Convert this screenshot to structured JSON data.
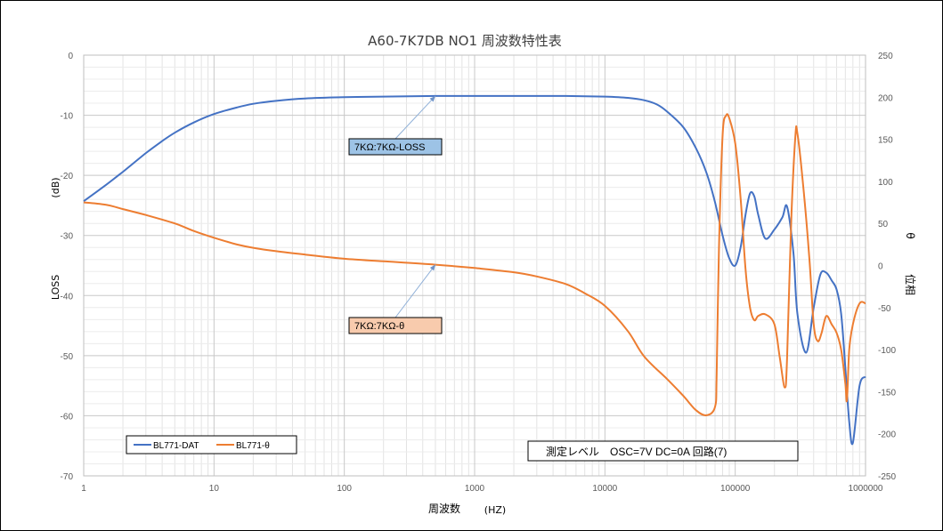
{
  "chart_data": {
    "type": "line",
    "title": "A60-7K7DB NO1 周波数特性表",
    "xlabel": "周波数",
    "xlabel_unit": "(HZ)",
    "ylabel": "LOSS",
    "ylabel_unit": "(dB)",
    "y2label": "θ",
    "y2label_unit": "位相",
    "x_scale": "log",
    "xlim": [
      1,
      1000000
    ],
    "ylim": [
      -70,
      0
    ],
    "y2lim": [
      -250,
      250
    ],
    "x_ticks": [
      "1",
      "10",
      "100",
      "1000",
      "10000",
      "100000",
      "1000000"
    ],
    "y_ticks": [
      "0",
      "-10",
      "-20",
      "-30",
      "-40",
      "-50",
      "-60",
      "-70"
    ],
    "y2_ticks": [
      "250",
      "200",
      "150",
      "100",
      "50",
      "0",
      "-50",
      "-100",
      "-150",
      "-200",
      "-250"
    ],
    "grid": true,
    "legend": "bottom-left",
    "series": [
      {
        "name": "BL771-DAT",
        "axis": "left",
        "color": "#4472C4",
        "x": [
          1,
          1.5,
          2,
          3,
          4,
          5,
          7,
          10,
          15,
          20,
          30,
          50,
          100,
          200,
          500,
          1000,
          2000,
          5000,
          10000,
          15000,
          20000,
          25000,
          30000,
          40000,
          50000,
          60000,
          70000,
          80000,
          90000,
          100000,
          110000,
          120000,
          130000,
          140000,
          150000,
          170000,
          200000,
          230000,
          250000,
          280000,
          300000,
          350000,
          400000,
          450000,
          500000,
          550000,
          600000,
          650000,
          700000,
          750000,
          800000,
          900000,
          1000000
        ],
        "values": [
          -24.3,
          -21.5,
          -19.4,
          -16.3,
          -14.3,
          -12.9,
          -11.2,
          -9.8,
          -8.7,
          -8.1,
          -7.6,
          -7.2,
          -7.0,
          -6.9,
          -6.8,
          -6.8,
          -6.8,
          -6.8,
          -6.9,
          -7.1,
          -7.5,
          -8.2,
          -9.4,
          -12.0,
          -15.5,
          -19.5,
          -24.5,
          -30.0,
          -33.8,
          -35.0,
          -32.0,
          -26.5,
          -23.0,
          -23.5,
          -26.5,
          -30.5,
          -29.0,
          -27.0,
          -25.2,
          -33.0,
          -43.0,
          -49.5,
          -42.0,
          -36.5,
          -36.2,
          -37.5,
          -39.0,
          -43.0,
          -52.0,
          -61.0,
          -64.5,
          -55.0,
          -53.5
        ]
      },
      {
        "name": "BL771-θ",
        "axis": "right",
        "color": "#ED7D31",
        "x": [
          1,
          1.5,
          2,
          3,
          5,
          7,
          10,
          15,
          20,
          30,
          50,
          100,
          200,
          500,
          1000,
          2000,
          3000,
          5000,
          7000,
          10000,
          15000,
          20000,
          30000,
          40000,
          50000,
          60000,
          70000,
          72000,
          75000,
          80000,
          85000,
          90000,
          100000,
          110000,
          120000,
          130000,
          140000,
          150000,
          170000,
          200000,
          220000,
          240000,
          250000,
          270000,
          290000,
          300000,
          330000,
          370000,
          400000,
          430000,
          460000,
          500000,
          550000,
          600000,
          650000,
          700000,
          720000,
          750000,
          800000,
          900000,
          1000000
        ],
        "values": [
          75,
          72,
          67,
          60,
          50,
          41,
          33,
          25,
          21,
          17,
          13,
          8,
          5,
          1,
          -3,
          -8,
          -13,
          -22,
          -33,
          -48,
          -78,
          -108,
          -135,
          -155,
          -172,
          -178,
          -168,
          -130,
          20,
          155,
          178,
          175,
          145,
          80,
          -5,
          -50,
          -65,
          -60,
          -58,
          -70,
          -110,
          -145,
          -110,
          60,
          155,
          157,
          100,
          10,
          -70,
          -90,
          -80,
          -60,
          -70,
          -80,
          -100,
          -140,
          -160,
          -100,
          -70,
          -45,
          -45
        ]
      }
    ],
    "annotations": [
      {
        "text": "7KΩ:7KΩ-LOSS",
        "series": 0,
        "x": 500,
        "y": -6.8,
        "color": "#9DC3E6"
      },
      {
        "text": "7KΩ:7KΩ-θ",
        "series": 1,
        "x": 500,
        "y": 1,
        "color": "#F8CBAD"
      }
    ],
    "notes_box": "測定レベル　OSC=7V  DC=0A  回路(7)"
  }
}
